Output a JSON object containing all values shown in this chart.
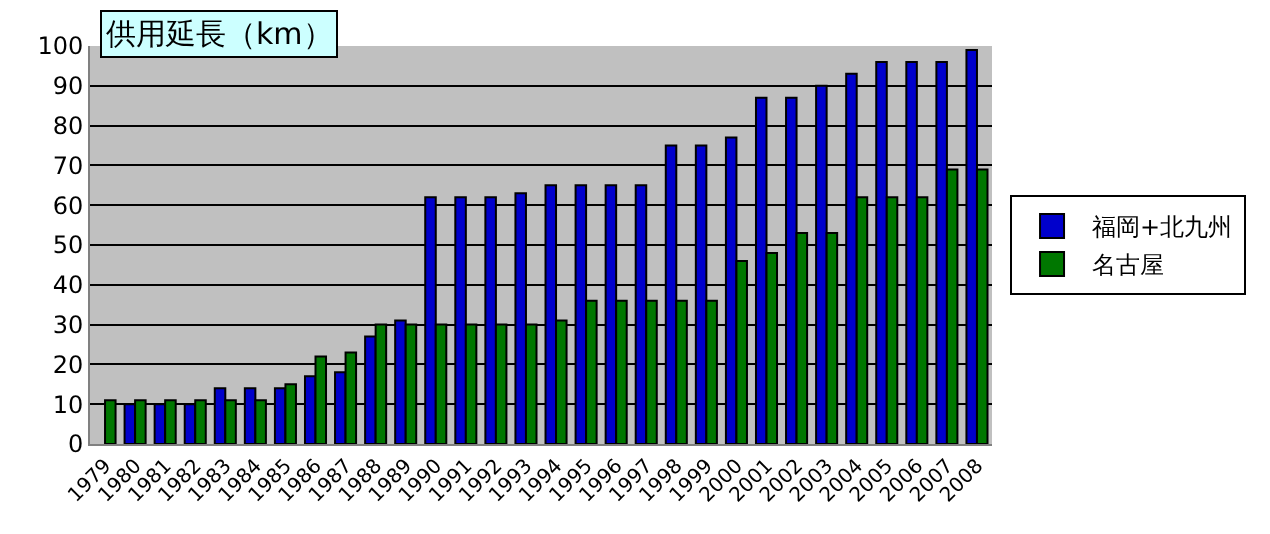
{
  "chart_data": {
    "type": "bar",
    "title": "供用延長（km）",
    "categories": [
      "1979",
      "1980",
      "1981",
      "1982",
      "1983",
      "1984",
      "1985",
      "1986",
      "1987",
      "1988",
      "1989",
      "1990",
      "1991",
      "1992",
      "1993",
      "1994",
      "1995",
      "1996",
      "1997",
      "1998",
      "1999",
      "2000",
      "2001",
      "2002",
      "2003",
      "2004",
      "2005",
      "2006",
      "2007",
      "2008"
    ],
    "series": [
      {
        "name": "福岡+北九州",
        "color": "#0000cc",
        "values": [
          null,
          10,
          10,
          10,
          14,
          14,
          14,
          17,
          18,
          27,
          31,
          62,
          62,
          62,
          63,
          65,
          65,
          65,
          65,
          75,
          75,
          77,
          87,
          87,
          90,
          93,
          96,
          96,
          96,
          99
        ]
      },
      {
        "name": "名古屋",
        "color": "#007700",
        "values": [
          11,
          11,
          11,
          11,
          11,
          11,
          15,
          22,
          23,
          30,
          30,
          30,
          30,
          30,
          30,
          31,
          36,
          36,
          36,
          36,
          36,
          46,
          48,
          53,
          53,
          62,
          62,
          62,
          69,
          69
        ]
      }
    ],
    "ylim": [
      0,
      100
    ],
    "yticks": [
      0,
      10,
      20,
      30,
      40,
      50,
      60,
      70,
      80,
      90,
      100
    ],
    "grid": "y",
    "legend": "right"
  }
}
